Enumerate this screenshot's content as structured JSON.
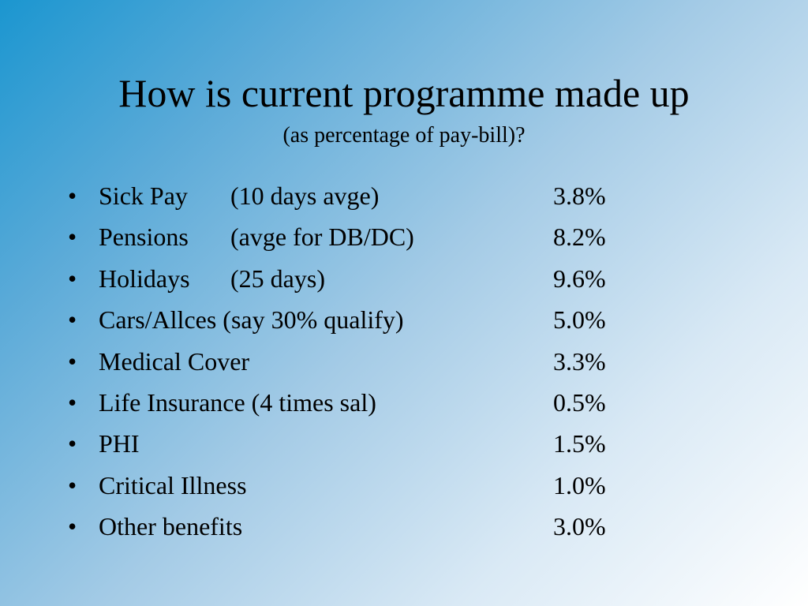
{
  "slide": {
    "title": "How is current programme made up",
    "subtitle": "(as percentage of pay-bill)?",
    "bullet_glyph": "•",
    "items": [
      {
        "label": "Sick Pay",
        "detail": "(10 days avge)",
        "value": "3.8%"
      },
      {
        "label": "Pensions",
        "detail": "(avge for DB/DC)",
        "value": "8.2%"
      },
      {
        "label": "Holidays",
        "detail": "(25 days)",
        "value": "9.6%"
      },
      {
        "label": "Cars/Allces (say 30% qualify)",
        "detail": "",
        "value": "5.0%"
      },
      {
        "label": "Medical Cover",
        "detail": "",
        "value": "3.3%"
      },
      {
        "label": "Life Insurance (4 times sal)",
        "detail": "",
        "value": "0.5%"
      },
      {
        "label": "PHI",
        "detail": "",
        "value": "1.5%"
      },
      {
        "label": "Critical Illness",
        "detail": "",
        "value": "1.0%"
      },
      {
        "label": "Other benefits",
        "detail": "",
        "value": "3.0%"
      }
    ],
    "colors": {
      "gradient_start": "#1b96d0",
      "gradient_end": "#ffffff",
      "text": "#000000"
    }
  }
}
